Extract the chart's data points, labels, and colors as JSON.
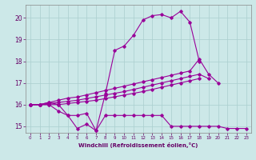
{
  "xlabel": "Windchill (Refroidissement éolien,°C)",
  "background_color": "#cce8e8",
  "grid_color": "#aacece",
  "line_color": "#990099",
  "xlim": [
    -0.5,
    23.5
  ],
  "ylim": [
    14.7,
    20.6
  ],
  "yticks": [
    15,
    16,
    17,
    18,
    19,
    20
  ],
  "xticks": [
    0,
    1,
    2,
    3,
    4,
    5,
    6,
    7,
    8,
    9,
    10,
    11,
    12,
    13,
    14,
    15,
    16,
    17,
    18,
    19,
    20,
    21,
    22,
    23
  ],
  "s1": [
    16.0,
    16.0,
    16.0,
    15.7,
    15.5,
    14.9,
    15.1,
    14.8,
    15.5,
    15.5,
    15.5,
    15.5,
    15.5,
    15.5,
    15.5,
    15.0,
    15.0,
    15.0,
    15.0,
    15.0,
    15.0,
    14.9,
    14.9,
    14.9
  ],
  "s2": [
    16.0,
    16.0,
    16.1,
    16.2,
    16.3,
    16.35,
    16.45,
    16.55,
    16.65,
    16.75,
    16.85,
    16.95,
    17.05,
    17.15,
    17.25,
    17.35,
    17.45,
    17.55,
    18.1,
    17.4,
    17.0,
    null,
    null,
    null
  ],
  "s3": [
    16.0,
    16.0,
    16.05,
    16.1,
    16.15,
    16.2,
    16.28,
    16.36,
    16.44,
    16.52,
    16.6,
    16.7,
    16.8,
    16.9,
    17.0,
    17.1,
    17.2,
    17.3,
    17.4,
    17.2,
    null,
    null,
    null,
    null
  ],
  "s4": [
    16.0,
    16.0,
    16.0,
    16.0,
    16.05,
    16.1,
    16.15,
    16.2,
    16.28,
    16.36,
    16.44,
    16.52,
    16.6,
    16.7,
    16.8,
    16.9,
    17.0,
    17.1,
    17.2,
    null,
    null,
    null,
    null,
    null
  ],
  "s5": [
    16.0,
    16.0,
    16.1,
    16.0,
    15.5,
    15.5,
    15.6,
    14.8,
    16.5,
    18.5,
    18.7,
    19.2,
    19.9,
    20.1,
    20.15,
    20.0,
    20.3,
    19.8,
    18.0,
    null,
    null,
    null,
    null,
    null
  ]
}
